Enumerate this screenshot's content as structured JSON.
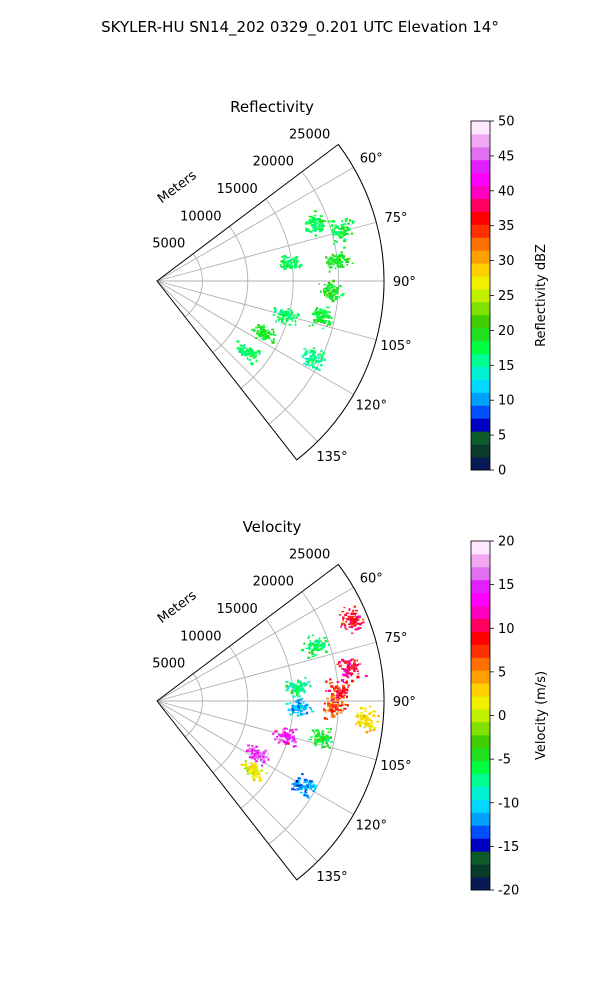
{
  "figure": {
    "title": "SKYLER-HU  SN14_202  0329_0.201 UTC Elevation 14°"
  },
  "colors": {
    "grid": "#b0b0b0",
    "frame": "#000000",
    "reflectivity_points": "#22e822"
  },
  "chart_data": [
    {
      "type": "polar-sector",
      "title": "Reflectivity",
      "radial_label": "Meters",
      "radial_ticks": [
        "5000",
        "10000",
        "15000",
        "20000",
        "25000"
      ],
      "radial_range": [
        0,
        25000
      ],
      "angle_ticks": [
        "60°",
        "75°",
        "90°",
        "105°",
        "120°",
        "135°"
      ],
      "angle_range_deg": [
        53,
        142
      ],
      "grid": true,
      "colorbar": {
        "label": "Reflectivity dBZ",
        "min": 0,
        "max": 50,
        "ticks": [
          "0",
          "5",
          "10",
          "15",
          "20",
          "25",
          "30",
          "35",
          "40",
          "45",
          "50"
        ],
        "colors": [
          "#071a55",
          "#0a3a2a",
          "#0d5a2a",
          "#0000c0",
          "#0050ff",
          "#00a0ff",
          "#00d8ff",
          "#00f0d0",
          "#00ff90",
          "#00ff40",
          "#20e020",
          "#40d000",
          "#80e000",
          "#c0f000",
          "#f0f000",
          "#ffd000",
          "#ffa000",
          "#ff7000",
          "#ff3000",
          "#ff0000",
          "#ff0060",
          "#ff00c0",
          "#ff00ff",
          "#e020ff",
          "#e070f0",
          "#f0a8f0",
          "#ffe8ff"
        ]
      },
      "clusters": [
        {
          "range_m": 18500,
          "azimuth_deg": 70,
          "value_dbz": 17
        },
        {
          "range_m": 21000,
          "azimuth_deg": 74,
          "value_dbz": 18
        },
        {
          "range_m": 20000,
          "azimuth_deg": 83,
          "value_dbz": 19
        },
        {
          "range_m": 14500,
          "azimuth_deg": 82,
          "value_dbz": 17
        },
        {
          "range_m": 19000,
          "azimuth_deg": 93,
          "value_dbz": 19
        },
        {
          "range_m": 14500,
          "azimuth_deg": 105,
          "value_dbz": 17
        },
        {
          "range_m": 18500,
          "azimuth_deg": 102,
          "value_dbz": 18
        },
        {
          "range_m": 13000,
          "azimuth_deg": 116,
          "value_dbz": 19
        },
        {
          "range_m": 19000,
          "azimuth_deg": 116,
          "value_dbz": 16
        },
        {
          "range_m": 12500,
          "azimuth_deg": 128,
          "value_dbz": 17
        }
      ]
    },
    {
      "type": "polar-sector",
      "title": "Velocity",
      "radial_label": "Meters",
      "radial_ticks": [
        "5000",
        "10000",
        "15000",
        "20000",
        "25000"
      ],
      "radial_range": [
        0,
        25000
      ],
      "angle_ticks": [
        "60°",
        "75°",
        "90°",
        "105°",
        "120°",
        "135°"
      ],
      "angle_range_deg": [
        53,
        142
      ],
      "grid": true,
      "colorbar": {
        "label": "Velocity (m/s)",
        "min": -20,
        "max": 20,
        "ticks": [
          "-20",
          "-15",
          "-10",
          "-5",
          "0",
          "5",
          "10",
          "15",
          "20"
        ],
        "colors": [
          "#071a55",
          "#0a3a2a",
          "#0d5a2a",
          "#0000c0",
          "#0050ff",
          "#00a0ff",
          "#00d8ff",
          "#00f0d0",
          "#00ff90",
          "#00ff40",
          "#20e020",
          "#40d000",
          "#80e000",
          "#c0f000",
          "#f0f000",
          "#ffd000",
          "#ffa000",
          "#ff7000",
          "#ff3000",
          "#ff0000",
          "#ff0060",
          "#ff00c0",
          "#ff00ff",
          "#e020ff",
          "#e070f0",
          "#f0a8f0",
          "#ffe8ff"
        ]
      },
      "clusters": [
        {
          "range_m": 18500,
          "azimuth_deg": 70,
          "value_ms": -6
        },
        {
          "range_m": 23000,
          "azimuth_deg": 67,
          "value_ms": 9
        },
        {
          "range_m": 21500,
          "azimuth_deg": 80,
          "value_ms": 10
        },
        {
          "range_m": 20000,
          "azimuth_deg": 86,
          "value_ms": 9
        },
        {
          "range_m": 15500,
          "azimuth_deg": 84,
          "value_ms": -7
        },
        {
          "range_m": 15500,
          "azimuth_deg": 92,
          "value_ms": -11
        },
        {
          "range_m": 19500,
          "azimuth_deg": 92,
          "value_ms": 7
        },
        {
          "range_m": 23000,
          "azimuth_deg": 95,
          "value_ms": 2
        },
        {
          "range_m": 14500,
          "azimuth_deg": 105,
          "value_ms": 14
        },
        {
          "range_m": 18500,
          "azimuth_deg": 103,
          "value_ms": -5
        },
        {
          "range_m": 12500,
          "azimuth_deg": 118,
          "value_ms": 15
        },
        {
          "range_m": 13000,
          "azimuth_deg": 126,
          "value_ms": 1
        },
        {
          "range_m": 18500,
          "azimuth_deg": 120,
          "value_ms": -12
        }
      ]
    }
  ]
}
